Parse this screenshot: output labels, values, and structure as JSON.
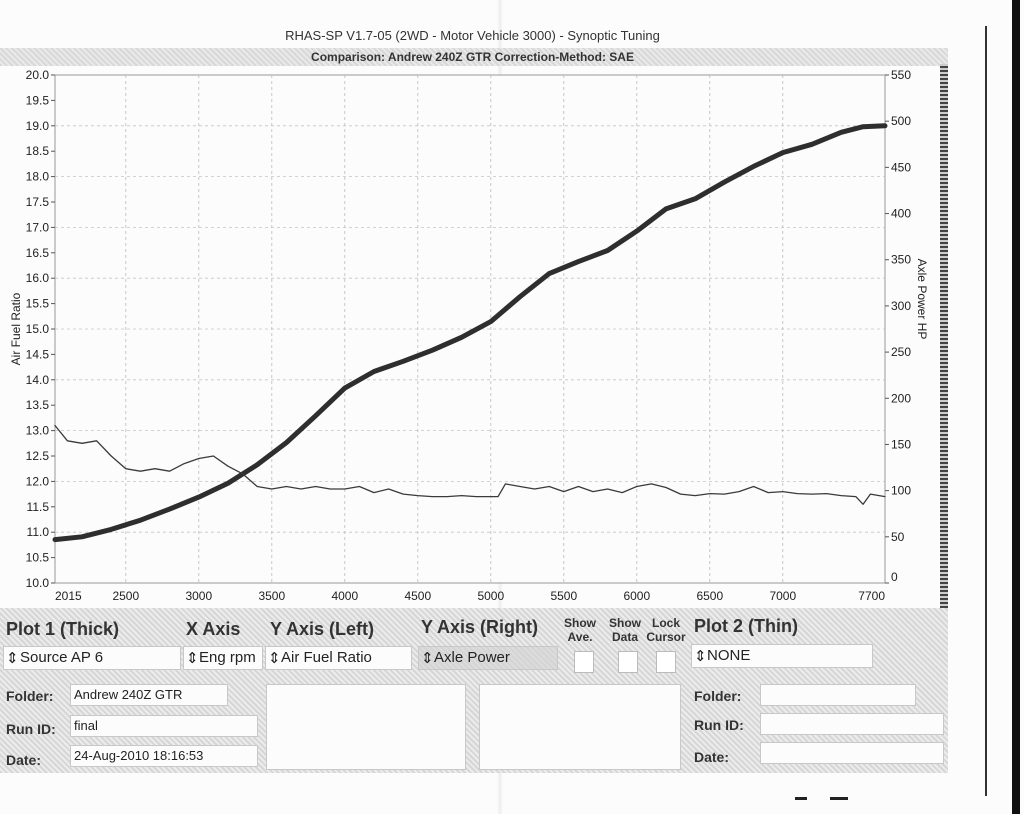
{
  "header": {
    "title": "RHAS-SP V1.7-05   (2WD - Motor Vehicle 3000) - Synoptic Tuning",
    "subtitle": "Comparison: Andrew 240Z GTR     Correction-Method: SAE"
  },
  "chart_data": {
    "type": "line",
    "xlabel": "",
    "ylabel_left": "Air Fuel Ratio",
    "ylabel_right": "Axle Power HP",
    "xlim": [
      2015,
      7700
    ],
    "ylim_left": [
      10.0,
      20.0
    ],
    "ylim_right": [
      0,
      550
    ],
    "x_ticks": [
      2015,
      2500,
      3000,
      3500,
      4000,
      4500,
      5000,
      5500,
      6000,
      6500,
      7000,
      7700
    ],
    "y_left_ticks": [
      "20.0",
      "19.5",
      "19.0",
      "18.5",
      "18.0",
      "17.5",
      "17.0",
      "16.5",
      "16.0",
      "15.5",
      "15.0",
      "14.5",
      "14.0",
      "13.5",
      "13.0",
      "12.5",
      "12.0",
      "11.5",
      "11.0",
      "10.5",
      "10.0"
    ],
    "y_right_ticks": [
      "550",
      "500",
      "450",
      "400",
      "350",
      "300",
      "250",
      "200",
      "150",
      "100",
      "50",
      "0"
    ],
    "grid": true,
    "series": [
      {
        "axis": "right",
        "style": "thick",
        "x": [
          2015,
          2200,
          2400,
          2600,
          2800,
          3000,
          3200,
          3400,
          3600,
          3800,
          4000,
          4200,
          4400,
          4600,
          4800,
          5000,
          5200,
          5400,
          5600,
          5800,
          6000,
          6200,
          6400,
          6600,
          6800,
          7000,
          7200,
          7400,
          7550,
          7700
        ],
        "y": [
          47,
          50,
          58,
          68,
          80,
          93,
          108,
          128,
          152,
          181,
          211,
          229,
          240,
          252,
          266,
          283,
          310,
          335,
          348,
          360,
          381,
          405,
          416,
          434,
          451,
          466,
          475,
          488,
          494,
          495
        ]
      },
      {
        "axis": "left",
        "style": "thin",
        "x": [
          2015,
          2100,
          2200,
          2300,
          2400,
          2500,
          2600,
          2700,
          2800,
          2900,
          3000,
          3100,
          3200,
          3300,
          3400,
          3500,
          3600,
          3700,
          3800,
          3900,
          4000,
          4100,
          4200,
          4300,
          4400,
          4500,
          4600,
          4700,
          4800,
          4900,
          5000,
          5050,
          5100,
          5200,
          5300,
          5400,
          5500,
          5600,
          5700,
          5800,
          5900,
          6000,
          6100,
          6200,
          6300,
          6400,
          6500,
          6600,
          6700,
          6800,
          6900,
          7000,
          7100,
          7200,
          7300,
          7400,
          7500,
          7550,
          7600,
          7700
        ],
        "y": [
          13.1,
          12.8,
          12.75,
          12.8,
          12.5,
          12.25,
          12.2,
          12.25,
          12.2,
          12.35,
          12.45,
          12.5,
          12.3,
          12.15,
          11.9,
          11.85,
          11.9,
          11.85,
          11.9,
          11.85,
          11.85,
          11.9,
          11.78,
          11.85,
          11.75,
          11.72,
          11.7,
          11.7,
          11.72,
          11.7,
          11.7,
          11.7,
          11.95,
          11.9,
          11.85,
          11.9,
          11.8,
          11.9,
          11.8,
          11.85,
          11.78,
          11.9,
          11.95,
          11.88,
          11.75,
          11.72,
          11.76,
          11.75,
          11.8,
          11.9,
          11.78,
          11.8,
          11.76,
          11.75,
          11.76,
          11.72,
          11.7,
          11.55,
          11.75,
          11.7
        ]
      }
    ]
  },
  "panel": {
    "plot1_title": "Plot 1 (Thick)",
    "x_axis_title": "X Axis",
    "y_left_title": "Y Axis (Left)",
    "y_right_title": "Y Axis (Right)",
    "show_ave": "Show Ave.",
    "show_data": "Show Data",
    "lock_cursor": "Lock Cursor",
    "plot2_title": "Plot 2 (Thin)",
    "plot1_source": "Source AP 6",
    "x_axis_value": "Eng rpm",
    "y_left_value": "Air Fuel Ratio",
    "y_right_value": "Axle Power",
    "plot2_source": "NONE",
    "folder_label": "Folder:",
    "run_id_label": "Run ID:",
    "date_label": "Date:",
    "folder_value": "Andrew 240Z GTR",
    "run_id_value": "final",
    "date_value": "24-Aug-2010   18:16:53",
    "folder2_label": "Folder:",
    "run_id2_label": "Run ID:",
    "date2_label": "Date:"
  }
}
